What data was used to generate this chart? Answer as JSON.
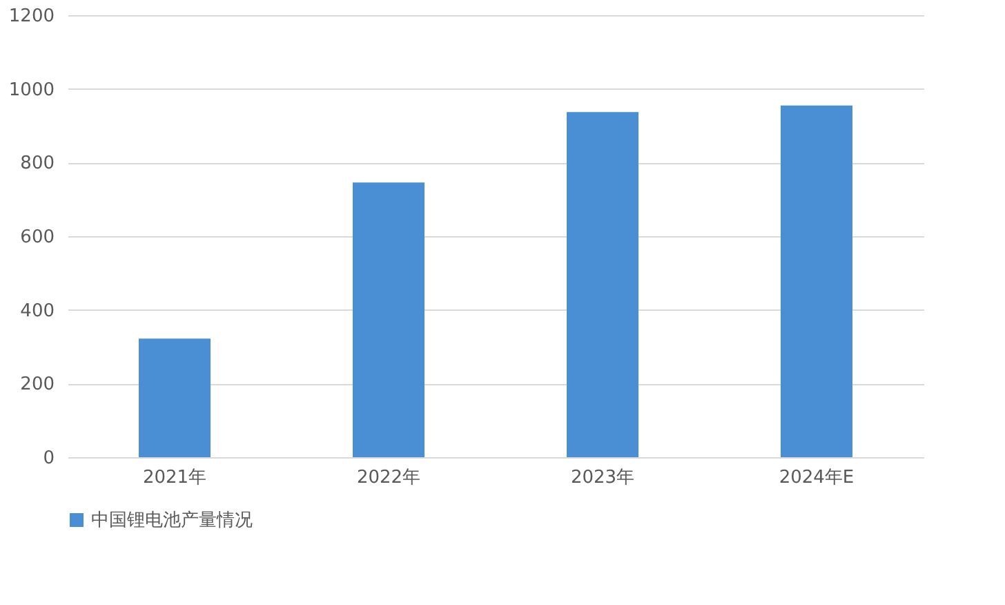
{
  "chart_data": {
    "type": "bar",
    "categories": [
      "2021年",
      "2022年",
      "2023年",
      "2024年E"
    ],
    "series": [
      {
        "name": "中国锂电池产量情况",
        "color": "#4a8ed4",
        "values": [
          322,
          746,
          937,
          955
        ]
      }
    ],
    "ylim": [
      0,
      1200
    ],
    "yticks": [
      0,
      200,
      400,
      600,
      800,
      1000,
      1200
    ],
    "grid": "y",
    "legend": "bottom"
  }
}
